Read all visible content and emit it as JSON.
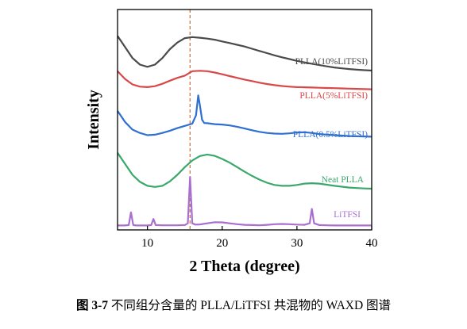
{
  "chart_data": {
    "type": "line",
    "xlabel": "2 Theta (degree)",
    "ylabel": "Intensity",
    "xlim": [
      6,
      40
    ],
    "xticks": [
      10,
      20,
      30,
      40
    ],
    "y_ticks_shown": false,
    "grid": false,
    "legend": "labels placed at right end of each curve",
    "reference_line": {
      "x": 15.7,
      "style": "dashed",
      "color": "#c97a4a"
    },
    "series": [
      {
        "name": "PLLA(10%LiTFSI)",
        "color": "#4a4a4a",
        "x": [
          6,
          7,
          8,
          9,
          10,
          11,
          12,
          13,
          14,
          15,
          16,
          17,
          18,
          19,
          20,
          21,
          22,
          23,
          24,
          25,
          26,
          27,
          28,
          29,
          30,
          31,
          32,
          33,
          34,
          35,
          36,
          37,
          38,
          39,
          40
        ],
        "y": [
          0.88,
          0.83,
          0.78,
          0.75,
          0.74,
          0.75,
          0.78,
          0.82,
          0.85,
          0.87,
          0.875,
          0.872,
          0.868,
          0.863,
          0.855,
          0.848,
          0.84,
          0.832,
          0.822,
          0.812,
          0.802,
          0.792,
          0.783,
          0.775,
          0.767,
          0.76,
          0.754,
          0.748,
          0.742,
          0.737,
          0.733,
          0.73,
          0.727,
          0.725,
          0.723
        ]
      },
      {
        "name": "PLLA(5%LiTFSI)",
        "color": "#d94848",
        "x": [
          6,
          7,
          8,
          9,
          10,
          11,
          12,
          13,
          14,
          15,
          16,
          17,
          18,
          19,
          20,
          21,
          22,
          23,
          24,
          25,
          26,
          27,
          28,
          29,
          30,
          31,
          32,
          33,
          34,
          35,
          36,
          37,
          38,
          39,
          40
        ],
        "y": [
          0.72,
          0.685,
          0.66,
          0.65,
          0.648,
          0.652,
          0.663,
          0.677,
          0.69,
          0.7,
          0.72,
          0.722,
          0.72,
          0.714,
          0.706,
          0.698,
          0.69,
          0.682,
          0.675,
          0.668,
          0.662,
          0.657,
          0.653,
          0.65,
          0.648,
          0.647,
          0.646,
          0.645,
          0.644,
          0.643,
          0.642,
          0.641,
          0.64,
          0.639,
          0.638
        ]
      },
      {
        "name": "PLLA(0.5%LiTFSI)",
        "color": "#2e6fd1",
        "x": [
          6,
          7,
          8,
          9,
          10,
          11,
          12,
          13,
          14,
          15,
          16,
          16.5,
          16.8,
          17,
          17.3,
          17.6,
          18,
          19,
          20,
          21,
          22,
          23,
          24,
          25,
          26,
          27,
          28,
          29,
          30,
          31,
          32,
          33,
          34,
          35,
          36,
          37,
          38,
          39,
          40
        ],
        "y": [
          0.54,
          0.49,
          0.455,
          0.44,
          0.43,
          0.432,
          0.44,
          0.45,
          0.462,
          0.472,
          0.482,
          0.52,
          0.61,
          0.57,
          0.5,
          0.485,
          0.484,
          0.48,
          0.478,
          0.474,
          0.468,
          0.46,
          0.452,
          0.445,
          0.44,
          0.437,
          0.436,
          0.438,
          0.442,
          0.443,
          0.44,
          0.435,
          0.432,
          0.43,
          0.428,
          0.426,
          0.425,
          0.424,
          0.423
        ]
      },
      {
        "name": "Neat PLLA",
        "color": "#3aa86a",
        "x": [
          6,
          7,
          8,
          9,
          10,
          11,
          12,
          13,
          14,
          15,
          16,
          17,
          18,
          19,
          20,
          21,
          22,
          23,
          24,
          25,
          26,
          27,
          28,
          29,
          30,
          31,
          32,
          33,
          34,
          35,
          36,
          37,
          38,
          39,
          40
        ],
        "y": [
          0.35,
          0.3,
          0.25,
          0.218,
          0.2,
          0.195,
          0.2,
          0.22,
          0.25,
          0.285,
          0.315,
          0.335,
          0.342,
          0.336,
          0.322,
          0.305,
          0.285,
          0.264,
          0.245,
          0.228,
          0.214,
          0.204,
          0.2,
          0.2,
          0.204,
          0.21,
          0.212,
          0.21,
          0.205,
          0.2,
          0.196,
          0.192,
          0.19,
          0.188,
          0.187
        ]
      },
      {
        "name": "LiTFSI",
        "color": "#a86ed0",
        "x": [
          6,
          7,
          7.5,
          7.8,
          8.1,
          8.5,
          9,
          10,
          10.5,
          10.8,
          11.1,
          12,
          13,
          14,
          15,
          15.4,
          15.7,
          16.0,
          16.4,
          17,
          18,
          19,
          20,
          21,
          22,
          23,
          24,
          25,
          26,
          27,
          28,
          29,
          30,
          31,
          31.7,
          32.0,
          32.3,
          33,
          34,
          35,
          36,
          37,
          38,
          39,
          40
        ],
        "y": [
          0.02,
          0.02,
          0.022,
          0.08,
          0.022,
          0.02,
          0.02,
          0.02,
          0.022,
          0.05,
          0.022,
          0.021,
          0.021,
          0.021,
          0.022,
          0.03,
          0.24,
          0.03,
          0.024,
          0.025,
          0.03,
          0.035,
          0.034,
          0.03,
          0.026,
          0.023,
          0.022,
          0.021,
          0.023,
          0.026,
          0.027,
          0.026,
          0.024,
          0.023,
          0.03,
          0.095,
          0.03,
          0.022,
          0.021,
          0.02,
          0.02,
          0.02,
          0.02,
          0.02,
          0.02
        ]
      }
    ]
  },
  "caption": {
    "figure_number": "图 3-7",
    "text": "不同组分含量的 PLLA/LiTFSI 共混物的 WAXD 图谱"
  }
}
